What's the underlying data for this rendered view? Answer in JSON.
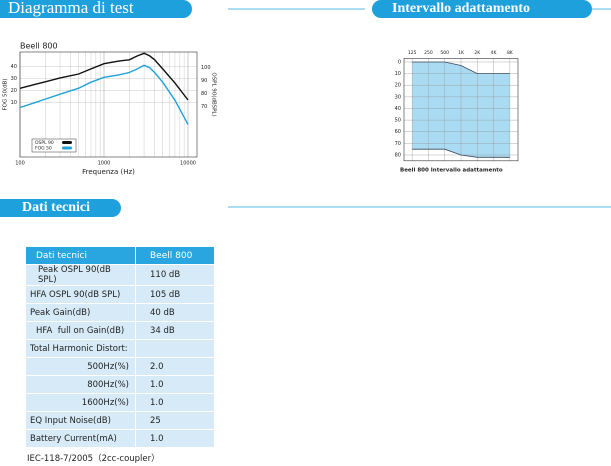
{
  "sections": {
    "test": "Diagramma di test",
    "range": "Intervallo adattamento",
    "specs": "Dati tecnici"
  },
  "chart_data": [
    {
      "type": "line",
      "title": "Beell 800",
      "xlabel": "Frequenza (Hz)",
      "ylabel": "FOG 50(dB)",
      "y2label": "OSPL 90(dBSPL)",
      "xscale": "log",
      "x": [
        100,
        150,
        200,
        300,
        500,
        700,
        1000,
        1500,
        2000,
        2500,
        3000,
        3500,
        4000,
        5000,
        7000,
        10000
      ],
      "xlim": [
        100,
        12800
      ],
      "xticks": [
        100,
        1000,
        10000
      ],
      "ylim": [
        -35,
        52
      ],
      "yticks": [
        10,
        20,
        30,
        40
      ],
      "y2lim": [
        31,
        112
      ],
      "y2ticks": [
        70,
        80,
        90,
        100
      ],
      "grid": true,
      "legend": "bottom-left",
      "series": [
        {
          "name": "OSPL 90",
          "color": "#111111",
          "axis": "y2",
          "values": [
            84,
            87,
            89,
            92,
            95,
            99,
            103,
            105,
            106,
            109,
            111,
            109,
            106,
            99,
            88,
            75
          ]
        },
        {
          "name": "FOG 50",
          "color": "#1fa3d8",
          "values": [
            6,
            10,
            13,
            17,
            22,
            27,
            31,
            33,
            35,
            38,
            41,
            39,
            35,
            27,
            12,
            -8
          ]
        }
      ]
    },
    {
      "type": "range",
      "caption": "Beell 800 Intervallo adattamento",
      "categories": [
        "125",
        "250",
        "500",
        "1K",
        "2K",
        "4K",
        "8K"
      ],
      "ylim": [
        -3,
        85
      ],
      "yticks": [
        0,
        10,
        20,
        30,
        40,
        50,
        60,
        70,
        80
      ],
      "y_inverted": true,
      "grid": true,
      "color": "#a9dbf2",
      "line_color": "#3a4a5a",
      "series": [
        {
          "values": [
            0,
            0,
            0,
            3,
            10,
            10,
            10
          ]
        },
        {
          "values": [
            75,
            75,
            75,
            80,
            82,
            82,
            82
          ]
        }
      ]
    }
  ],
  "table": {
    "header": [
      "Dati tecnici",
      "Beell 800"
    ],
    "rows": [
      [
        "Peak OSPL 90(dB SPL)",
        "110 dB"
      ],
      [
        "HFA OSPL 90(dB SPL)",
        "105 dB"
      ],
      [
        "Peak Gain(dB)",
        "40 dB"
      ],
      [
        "HFA  full on Gain(dB)",
        "34 dB"
      ],
      [
        "Total Harmonic Distort:"
      ],
      [
        "500Hz(%)",
        "2.0"
      ],
      [
        "800Hz(%)",
        "1.0"
      ],
      [
        "1600Hz(%)",
        "1.0"
      ],
      [
        "EQ Input Noise(dB)",
        "25"
      ],
      [
        "Battery Current(mA)",
        "1.0"
      ]
    ],
    "note": "IEC-118-7/2005（2cc-coupler）"
  }
}
